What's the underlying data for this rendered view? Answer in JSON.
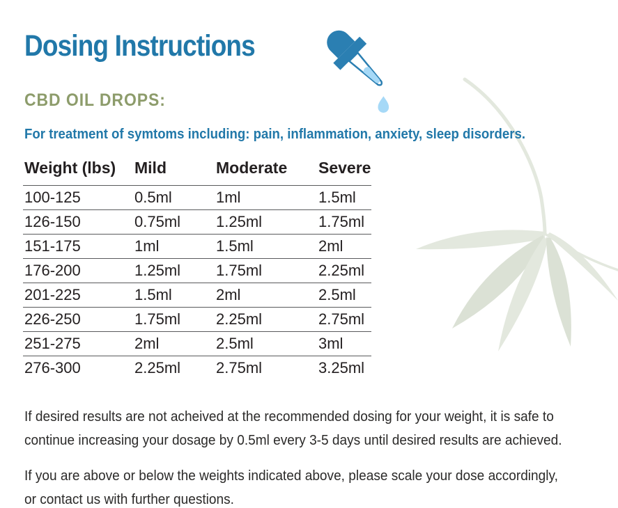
{
  "document": {
    "title": "Dosing Instructions",
    "section_heading": "CBD OIL DROPS:",
    "subtitle": "For treatment of symtoms including: pain, inflammation, anxiety, sleep disorders."
  },
  "dosing_table": {
    "headers": [
      "Weight (lbs)",
      "Mild",
      "Moderate",
      "Severe"
    ],
    "rows": [
      [
        "100-125",
        "0.5ml",
        "1ml",
        "1.5ml"
      ],
      [
        "126-150",
        "0.75ml",
        "1.25ml",
        "1.75ml"
      ],
      [
        "151-175",
        "1ml",
        "1.5ml",
        "2ml"
      ],
      [
        "176-200",
        "1.25ml",
        "1.75ml",
        "2.25ml"
      ],
      [
        "201-225",
        "1.5ml",
        "2ml",
        "2.5ml"
      ],
      [
        "226-250",
        "1.75ml",
        "2.25ml",
        "2.75ml"
      ],
      [
        "251-275",
        "2ml",
        "2.5ml",
        "3ml"
      ],
      [
        "276-300",
        "2.25ml",
        "2.75ml",
        "3.25ml"
      ]
    ]
  },
  "notes": [
    {
      "lines": [
        "If desired results are not acheived at the recommended dosing for your weight, it is safe to",
        "continue increasing your dosage by 0.5ml every 3-5 days until desired results are achieved."
      ]
    },
    {
      "lines": [
        "If you are above or below the weights indicated above, please scale your dose accordingly,",
        "or contact us with further questions."
      ]
    }
  ],
  "icons": {
    "dropper": "dropper-icon",
    "droplet": "droplet-icon",
    "leaf": "hemp-leaf-decoration"
  },
  "colors": {
    "accent_blue": "#2178a9",
    "olive_green": "#8d9c6b",
    "dropper_blue": "#2b7fb2",
    "droplet_light_blue": "#a6d9f7",
    "table_text": "#231f20",
    "rule_gray": "#58595b",
    "note_text": "#2b2a29",
    "leaf_sage": "#e3e8de",
    "leaf_sage_dark": "#dbe1d5"
  }
}
